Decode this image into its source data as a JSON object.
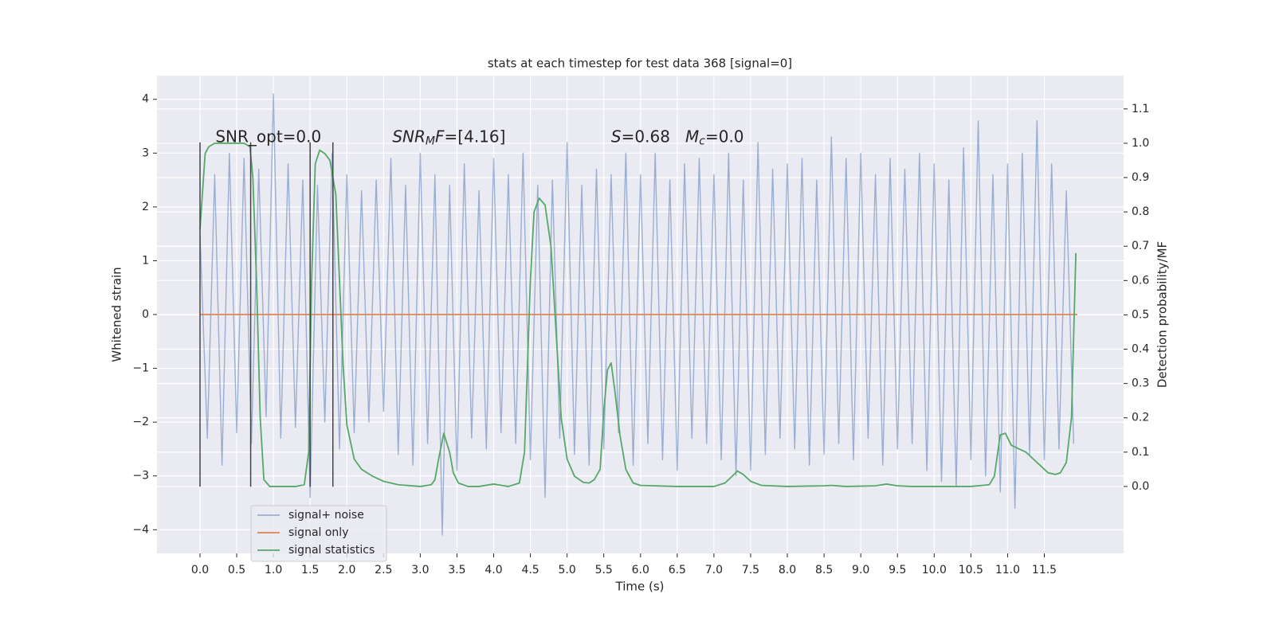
{
  "chart_data": {
    "type": "line",
    "title": "stats at each timestep for test data 368 [signal=0]",
    "x_label": "Time (s)",
    "y_label": "Whitened strain",
    "y2_label": "Detection probability/MF",
    "xlim": [
      -0.586,
      12.58
    ],
    "ylim": [
      -4.44,
      4.44
    ],
    "y2lim": [
      -0.195,
      1.197
    ],
    "xticks": [
      {
        "value": 0,
        "label": "0.0"
      },
      0.5,
      {
        "value": 1,
        "label": "1.0"
      },
      1.5,
      {
        "value": 2,
        "label": "2.0"
      },
      2.5,
      {
        "value": 3,
        "label": "3.0"
      },
      3.5,
      {
        "value": 4,
        "label": "4.0"
      },
      4.5,
      {
        "value": 5,
        "label": "5.0"
      },
      5.5,
      {
        "value": 6,
        "label": "6.0"
      },
      6.5,
      {
        "value": 7,
        "label": "7.0"
      },
      7.5,
      {
        "value": 8,
        "label": "8.0"
      },
      8.5,
      {
        "value": 9,
        "label": "9.0"
      },
      9.5,
      {
        "value": 10,
        "label": "10.0"
      },
      10.5,
      {
        "value": 11,
        "label": "11.0"
      },
      11.5
    ],
    "yticks": [
      {
        "value": -4,
        "label": "−4"
      },
      {
        "value": -3,
        "label": "−3"
      },
      {
        "value": -2,
        "label": "−2"
      },
      {
        "value": -1,
        "label": "−1"
      },
      0,
      1,
      2,
      3,
      4
    ],
    "y2ticks": [
      {
        "value": 0,
        "label": "0.0"
      },
      0.1,
      0.2,
      0.3,
      0.4,
      0.5,
      0.6,
      0.7,
      0.8,
      0.9,
      {
        "value": 1,
        "label": "1.0"
      },
      1.1
    ],
    "grid": true,
    "legend": "lower left",
    "series": [
      {
        "name": "signal+ noise",
        "color": "#4c72b0",
        "opacity": 0.5,
        "x": [
          0.0,
          0.1,
          0.2,
          0.3,
          0.4,
          0.5,
          0.6,
          0.7,
          0.8,
          0.9,
          1.0,
          1.1,
          1.2,
          1.3,
          1.4,
          1.5,
          1.6,
          1.7,
          1.8,
          1.9,
          2.0,
          2.1,
          2.2,
          2.3,
          2.4,
          2.5,
          2.6,
          2.7,
          2.8,
          2.9,
          3.0,
          3.1,
          3.2,
          3.3,
          3.4,
          3.5,
          3.6,
          3.7,
          3.8,
          3.9,
          4.0,
          4.1,
          4.2,
          4.3,
          4.4,
          4.5,
          4.6,
          4.7,
          4.8,
          4.9,
          5.0,
          5.1,
          5.2,
          5.3,
          5.4,
          5.5,
          5.6,
          5.7,
          5.8,
          5.9,
          6.0,
          6.1,
          6.2,
          6.3,
          6.4,
          6.5,
          6.6,
          6.7,
          6.8,
          6.9,
          7.0,
          7.1,
          7.2,
          7.3,
          7.4,
          7.5,
          7.6,
          7.7,
          7.8,
          7.9,
          8.0,
          8.1,
          8.2,
          8.3,
          8.4,
          8.5,
          8.6,
          8.7,
          8.8,
          8.9,
          9.0,
          9.1,
          9.2,
          9.3,
          9.4,
          9.5,
          9.6,
          9.7,
          9.8,
          9.9,
          10.0,
          10.1,
          10.2,
          10.3,
          10.4,
          10.5,
          10.6,
          10.7,
          10.8,
          10.9,
          11.0,
          11.1,
          11.2,
          11.3,
          11.4,
          11.5,
          11.6,
          11.7,
          11.8,
          11.9
        ],
        "values": [
          1.5,
          -2.3,
          2.6,
          -2.8,
          3.0,
          -2.2,
          2.9,
          -2.4,
          2.7,
          -1.9,
          4.1,
          -2.3,
          2.8,
          -2.1,
          2.5,
          -3.4,
          2.4,
          -2.0,
          3.0,
          -2.5,
          2.6,
          -2.2,
          2.3,
          -2.0,
          2.5,
          -1.8,
          2.9,
          -2.6,
          2.4,
          -2.8,
          3.0,
          -2.4,
          2.6,
          -4.1,
          2.4,
          -2.9,
          2.8,
          -2.3,
          2.3,
          -2.5,
          2.9,
          -2.2,
          2.6,
          -2.4,
          3.0,
          -2.7,
          2.4,
          -3.4,
          2.5,
          -2.3,
          3.2,
          -2.6,
          2.4,
          -2.8,
          2.7,
          -2.5,
          2.6,
          -2.2,
          3.0,
          -2.8,
          2.6,
          -2.4,
          3.0,
          -2.7,
          2.5,
          -2.9,
          2.8,
          -2.3,
          2.9,
          -2.4,
          2.6,
          -2.7,
          3.0,
          -3.0,
          2.5,
          -2.9,
          3.2,
          -2.6,
          2.7,
          -2.3,
          2.8,
          -2.5,
          2.9,
          -2.8,
          2.5,
          -2.6,
          3.3,
          -2.4,
          2.9,
          -2.7,
          3.0,
          -2.3,
          2.6,
          -2.8,
          2.9,
          -2.5,
          2.7,
          -2.4,
          3.0,
          -2.9,
          2.8,
          -3.1,
          2.5,
          -3.2,
          3.1,
          -2.7,
          3.6,
          -3.0,
          2.6,
          -3.3,
          2.8,
          -3.6,
          3.0,
          -2.6,
          3.6,
          -2.7,
          2.8,
          -2.5,
          2.3,
          -2.4
        ]
      },
      {
        "name": "signal only",
        "color": "#dd8452",
        "opacity": 1,
        "x": [
          0.0,
          11.95
        ],
        "values": [
          0,
          0
        ]
      },
      {
        "name": "signal statistics",
        "color": "#55a868",
        "opacity": 1,
        "axis": "y2",
        "x": [
          0.0,
          0.07,
          0.12,
          0.2,
          0.4,
          0.6,
          0.68,
          0.72,
          0.77,
          0.82,
          0.87,
          0.95,
          1.1,
          1.3,
          1.42,
          1.48,
          1.52,
          1.57,
          1.63,
          1.7,
          1.77,
          1.85,
          1.9,
          1.95,
          2.0,
          2.1,
          2.2,
          2.35,
          2.5,
          2.7,
          3.0,
          3.15,
          3.2,
          3.25,
          3.32,
          3.4,
          3.45,
          3.52,
          3.65,
          3.8,
          4.0,
          4.2,
          4.35,
          4.42,
          4.5,
          4.55,
          4.62,
          4.7,
          4.78,
          4.85,
          4.92,
          5.0,
          5.1,
          5.22,
          5.3,
          5.37,
          5.45,
          5.5,
          5.55,
          5.6,
          5.65,
          5.72,
          5.8,
          5.9,
          6.0,
          6.5,
          7.0,
          7.15,
          7.25,
          7.32,
          7.4,
          7.5,
          7.65,
          8.0,
          8.5,
          8.6,
          8.8,
          9.2,
          9.35,
          9.5,
          9.7,
          10.5,
          10.75,
          10.82,
          10.9,
          10.97,
          11.05,
          11.15,
          11.25,
          11.35,
          11.45,
          11.55,
          11.65,
          11.72,
          11.8,
          11.87,
          11.93
        ],
        "values": [
          0.75,
          0.97,
          0.99,
          1.0,
          1.0,
          1.0,
          0.99,
          0.9,
          0.6,
          0.2,
          0.02,
          0.0,
          0.0,
          0.0,
          0.005,
          0.1,
          0.6,
          0.94,
          0.98,
          0.97,
          0.95,
          0.85,
          0.6,
          0.35,
          0.18,
          0.08,
          0.05,
          0.03,
          0.015,
          0.005,
          0.0,
          0.005,
          0.02,
          0.08,
          0.155,
          0.1,
          0.04,
          0.01,
          0.0,
          0.0,
          0.007,
          0.0,
          0.01,
          0.1,
          0.6,
          0.8,
          0.84,
          0.82,
          0.7,
          0.45,
          0.2,
          0.08,
          0.03,
          0.012,
          0.01,
          0.02,
          0.05,
          0.22,
          0.34,
          0.36,
          0.28,
          0.15,
          0.05,
          0.01,
          0.003,
          0.0,
          0.0,
          0.01,
          0.03,
          0.045,
          0.035,
          0.015,
          0.003,
          0.0,
          0.002,
          0.003,
          0.0,
          0.002,
          0.007,
          0.002,
          0.0,
          0.0,
          0.005,
          0.03,
          0.15,
          0.155,
          0.12,
          0.11,
          0.1,
          0.08,
          0.06,
          0.04,
          0.035,
          0.04,
          0.07,
          0.2,
          0.68
        ]
      }
    ],
    "vlines": {
      "x": [
        0,
        0.69,
        1.5,
        1.81
      ],
      "ymin": -3.2,
      "ymax": 3.2,
      "color": "#444444"
    },
    "annotations": [
      {
        "x": 0.21,
        "y": 3.29,
        "parts": [
          {
            "text": "SNR_opt=0.0",
            "style": "normal"
          }
        ]
      },
      {
        "x": 2.62,
        "y": 3.29,
        "parts": [
          {
            "text": "SNR",
            "style": "italic"
          },
          {
            "text": "M",
            "style": "sub"
          },
          {
            "text": "F",
            "style": "italic"
          },
          {
            "text": "=[4.16]",
            "style": "normal"
          }
        ]
      },
      {
        "x": 5.6,
        "y": 3.29,
        "parts": [
          {
            "text": "S",
            "style": "italic"
          },
          {
            "text": "=0.68   ",
            "style": "normal"
          },
          {
            "text": "M",
            "style": "italic"
          },
          {
            "text": "c",
            "style": "sub"
          },
          {
            "text": "=0.0",
            "style": "normal"
          }
        ]
      }
    ]
  }
}
